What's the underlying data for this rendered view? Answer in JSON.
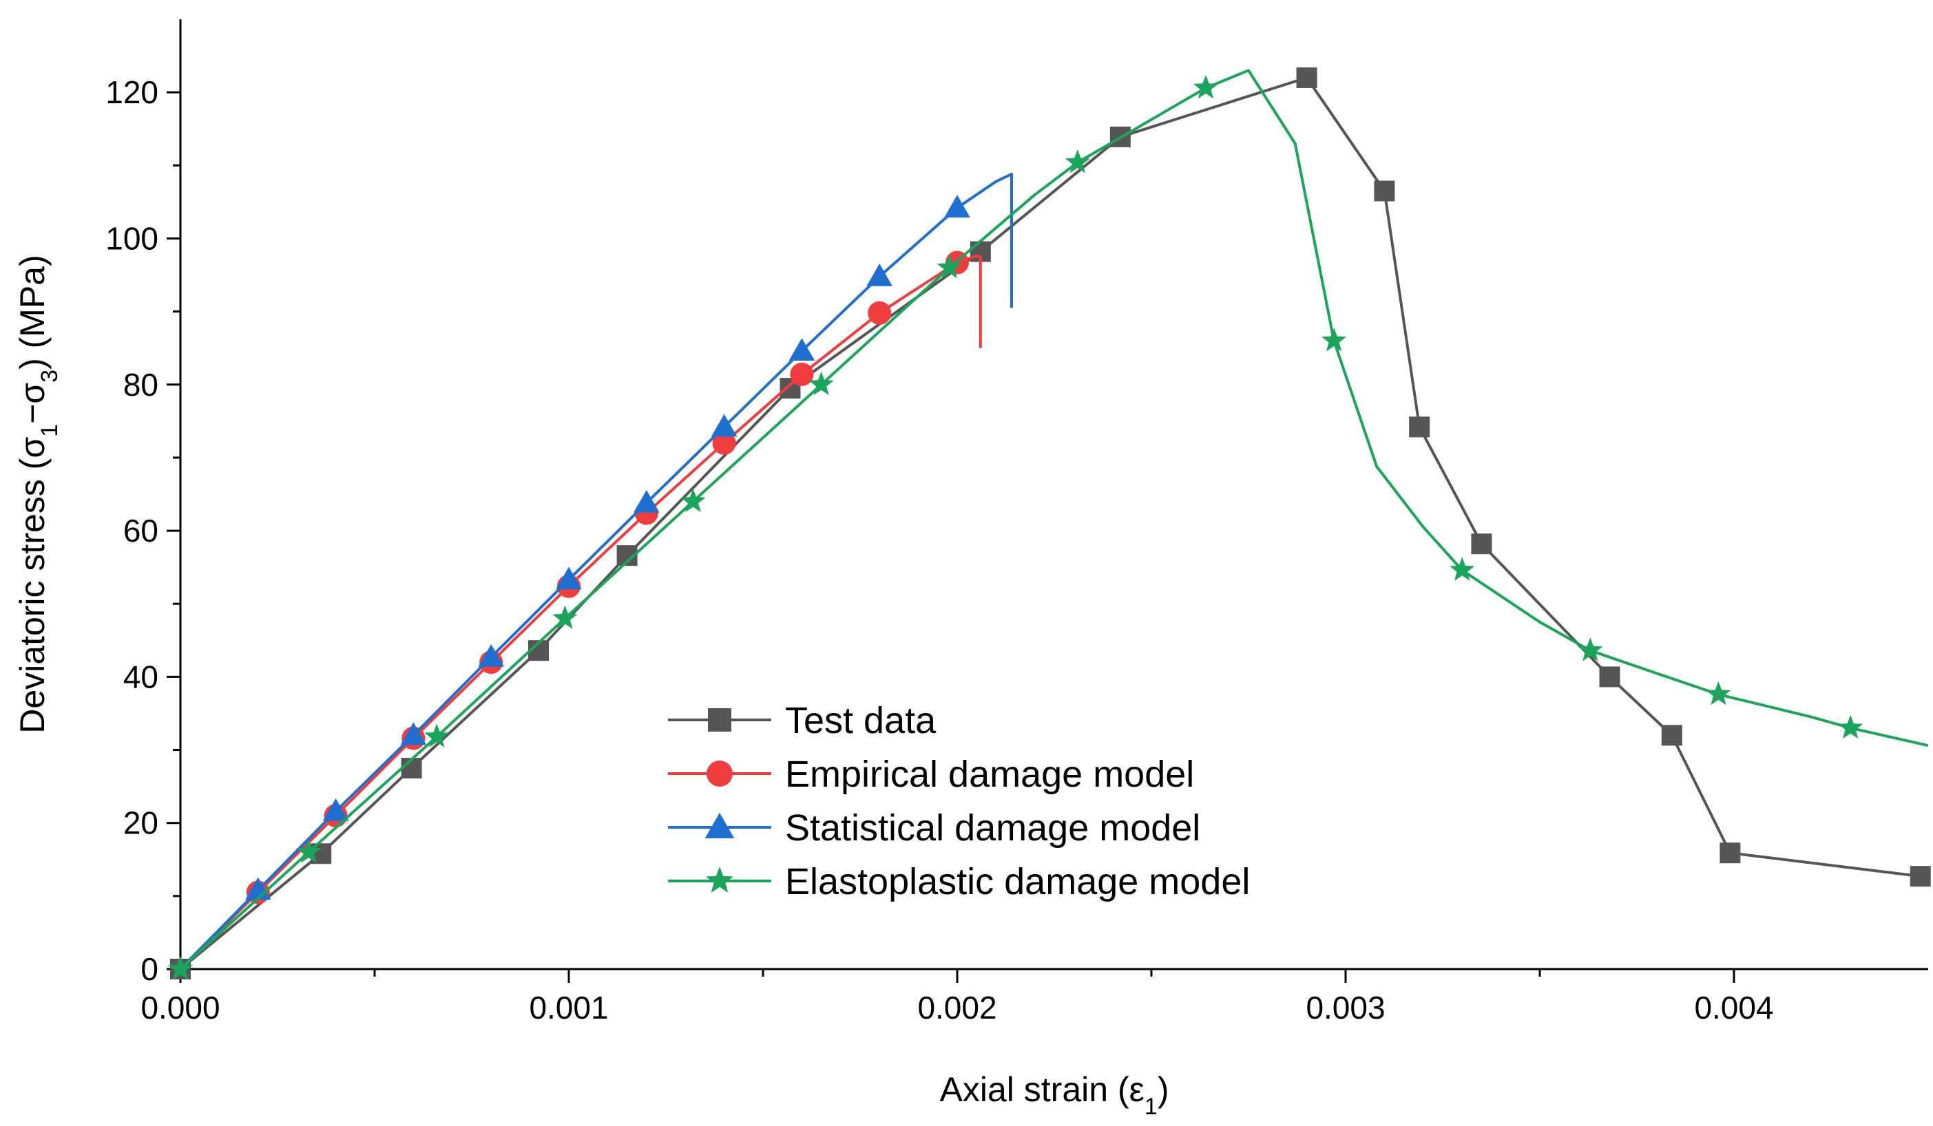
{
  "chart_data": {
    "type": "line",
    "title": "",
    "xlabel": "Axial strain (ε",
    "xlabel_sub": "1",
    "xlabel_end": ")",
    "ylabel_parts": [
      "Deviatoric stress (σ",
      "1",
      "−σ",
      "3",
      ") (MPa)"
    ],
    "xlim": [
      0,
      0.0045
    ],
    "ylim": [
      0,
      130
    ],
    "x_ticks": [
      0,
      0.001,
      0.002,
      0.003,
      0.004
    ],
    "x_tick_labels": [
      "0.000",
      "0.001",
      "0.002",
      "0.003",
      "0.004"
    ],
    "y_ticks": [
      0,
      20,
      40,
      60,
      80,
      100,
      120
    ],
    "y_tick_labels": [
      "0",
      "20",
      "40",
      "60",
      "80",
      "100",
      "120"
    ],
    "legend_position": "bottom-center",
    "series": [
      {
        "name": "Test data",
        "color": "#555555",
        "marker": "square",
        "line_x": [
          0,
          0.000362,
          0.000595,
          0.000922,
          0.00115,
          0.00157,
          0.00206,
          0.00242,
          0.0029,
          0.0031,
          0.00319,
          0.00335,
          0.00368,
          0.00384,
          0.00399,
          0.00448
        ],
        "line_y": [
          0,
          15.8,
          27.5,
          43.6,
          56.6,
          79.5,
          98.2,
          113.9,
          122,
          106.5,
          74.2,
          58.2,
          40,
          32,
          15.9,
          12.7
        ],
        "marker_x": [
          0,
          0.000362,
          0.000595,
          0.000922,
          0.00115,
          0.00157,
          0.00206,
          0.00242,
          0.0029,
          0.0031,
          0.00319,
          0.00335,
          0.00368,
          0.00384,
          0.00399,
          0.00448
        ],
        "marker_y": [
          0,
          15.8,
          27.5,
          43.6,
          56.6,
          79.5,
          98.2,
          113.9,
          122,
          106.5,
          74.2,
          58.2,
          40,
          32,
          15.9,
          12.7
        ]
      },
      {
        "name": "Empirical damage model",
        "color": "#f03c3c",
        "marker": "circle",
        "line_x": [
          0,
          0.0002,
          0.0004,
          0.0006,
          0.0008,
          0.001,
          0.0012,
          0.0014,
          0.0016,
          0.0018,
          0.002,
          0.00205,
          0.00206,
          0.00206
        ],
        "line_y": [
          0,
          10.5,
          21,
          31.6,
          42,
          52.4,
          62.4,
          72,
          81.4,
          89.8,
          96.7,
          97.6,
          97.5,
          85
        ],
        "marker_x": [
          0.0002,
          0.0004,
          0.0006,
          0.0008,
          0.001,
          0.0012,
          0.0014,
          0.0016,
          0.0018,
          0.002
        ],
        "marker_y": [
          10.5,
          21,
          31.6,
          42,
          52.4,
          62.4,
          72,
          81.4,
          89.8,
          96.7
        ]
      },
      {
        "name": "Statistical damage model",
        "color": "#1f6fd1",
        "marker": "triangle",
        "line_x": [
          0,
          0.0002,
          0.0004,
          0.0006,
          0.0008,
          0.001,
          0.0012,
          0.0014,
          0.0016,
          0.0018,
          0.002,
          0.0021,
          0.00214,
          0.00214,
          0.00214
        ],
        "line_y": [
          0,
          10.8,
          21.6,
          32,
          42.7,
          53.3,
          63.8,
          74.2,
          84.6,
          94.8,
          104.2,
          107.8,
          108.8,
          105,
          90.5
        ],
        "marker_x": [
          0.0002,
          0.0004,
          0.0006,
          0.0008,
          0.001,
          0.0012,
          0.0014,
          0.0016,
          0.0018,
          0.002
        ],
        "marker_y": [
          10.8,
          21.6,
          32,
          42.7,
          53.3,
          63.8,
          74.2,
          84.6,
          94.8,
          104.2
        ]
      },
      {
        "name": "Elastoplastic damage model",
        "color": "#1aa55a",
        "marker": "star",
        "line_x": [
          0,
          0.00033,
          0.00066,
          0.00099,
          0.00132,
          0.00165,
          0.00198,
          0.0022,
          0.00231,
          0.00264,
          0.00275,
          0.00287,
          0.00297,
          0.00308,
          0.0032,
          0.0033,
          0.0035,
          0.00363,
          0.0038,
          0.00396,
          0.0042,
          0.0043,
          0.0045
        ],
        "line_y": [
          0,
          16,
          31.8,
          48,
          64,
          80,
          96,
          106,
          110.4,
          120.6,
          123,
          113,
          86,
          68.8,
          60.5,
          54.6,
          47.5,
          43.6,
          40.5,
          37.6,
          34.5,
          33,
          30.6
        ],
        "marker_x": [
          0,
          0.00033,
          0.00066,
          0.00099,
          0.00132,
          0.00165,
          0.00198,
          0.00231,
          0.00264,
          0.00297,
          0.0033,
          0.00363,
          0.00396,
          0.0043
        ],
        "marker_y": [
          0,
          16,
          31.8,
          48,
          64,
          80,
          96,
          110.4,
          120.6,
          86,
          54.6,
          43.6,
          37.6,
          33
        ]
      }
    ]
  }
}
